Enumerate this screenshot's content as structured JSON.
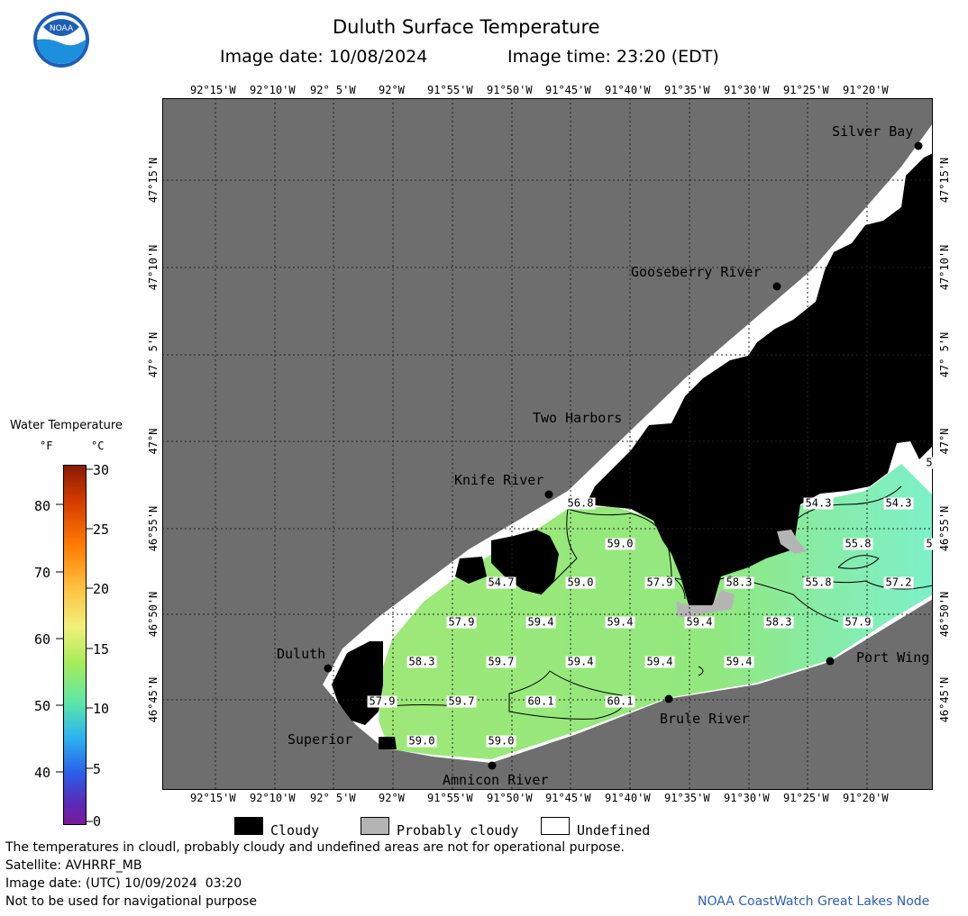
{
  "header": {
    "title": "Duluth Surface Temperature",
    "image_date_label": "Image date: 10/08/2024",
    "image_time_label": "Image time: 23:20 (EDT)"
  },
  "logo": {
    "text": "NOAA",
    "icon": "noaa-logo"
  },
  "map": {
    "lon_labels": [
      "92°15'W",
      "92°10'W",
      "92° 5'W",
      "92°W",
      "91°55'W",
      "91°50'W",
      "91°45'W",
      "91°40'W",
      "91°35'W",
      "91°30'W",
      "91°25'W",
      "91°20'W"
    ],
    "lat_labels": [
      "47°15'N",
      "47°10'N",
      "47° 5'N",
      "47°N",
      "46°55'N",
      "46°50'N",
      "46°45'N"
    ],
    "places": [
      {
        "name": "Silver Bay"
      },
      {
        "name": "Gooseberry River"
      },
      {
        "name": "Two Harbors"
      },
      {
        "name": "Knife River"
      },
      {
        "name": "Duluth"
      },
      {
        "name": "Superior"
      },
      {
        "name": "Amnicon River"
      },
      {
        "name": "Brule River"
      },
      {
        "name": "Port Wing"
      }
    ],
    "temperatures": [
      "56.8",
      "59.0",
      "54.3",
      "54.3",
      "55.8",
      "54.7",
      "59.0",
      "57.9",
      "58.3",
      "55.8",
      "57.2",
      "57.9",
      "59.4",
      "59.4",
      "59.4",
      "58.3",
      "57.9",
      "58.3",
      "59.7",
      "59.4",
      "59.4",
      "59.4",
      "57.9",
      "59.7",
      "60.1",
      "60.1",
      "59.0",
      "59.0",
      "5",
      "5"
    ]
  },
  "legend": {
    "title": "Water Temperature",
    "unit_f": "°F",
    "unit_c": "°C",
    "f_ticks": [
      "80",
      "70",
      "60",
      "50",
      "40"
    ],
    "c_ticks": [
      "30",
      "25",
      "20",
      "15",
      "10",
      "5",
      "0"
    ],
    "categories": [
      {
        "label": "Cloudy",
        "color": "#000000"
      },
      {
        "label": "Probably cloudy",
        "color": "#b4b4b4"
      },
      {
        "label": "Undefined",
        "color": "#ffffff"
      }
    ]
  },
  "footer": {
    "disclaimer": "The temperatures in cloudl, probably cloudy and undefined areas are not for operational purpose.",
    "satellite": "Satellite: AVHRRF_MB",
    "utc_date": "Image date: (UTC) 10/09/2024  03:20",
    "nav_warning": "Not to be used for navigational purpose",
    "credit": "NOAA CoastWatch Great Lakes Node"
  },
  "colors": {
    "land": "#6e6e6e",
    "cloud": "#000000",
    "probably_cloudy": "#b4b4b4",
    "water_green": "#8ee878",
    "water_cyan": "#7ef0c8",
    "accent_blue": "#2e5fb6"
  }
}
